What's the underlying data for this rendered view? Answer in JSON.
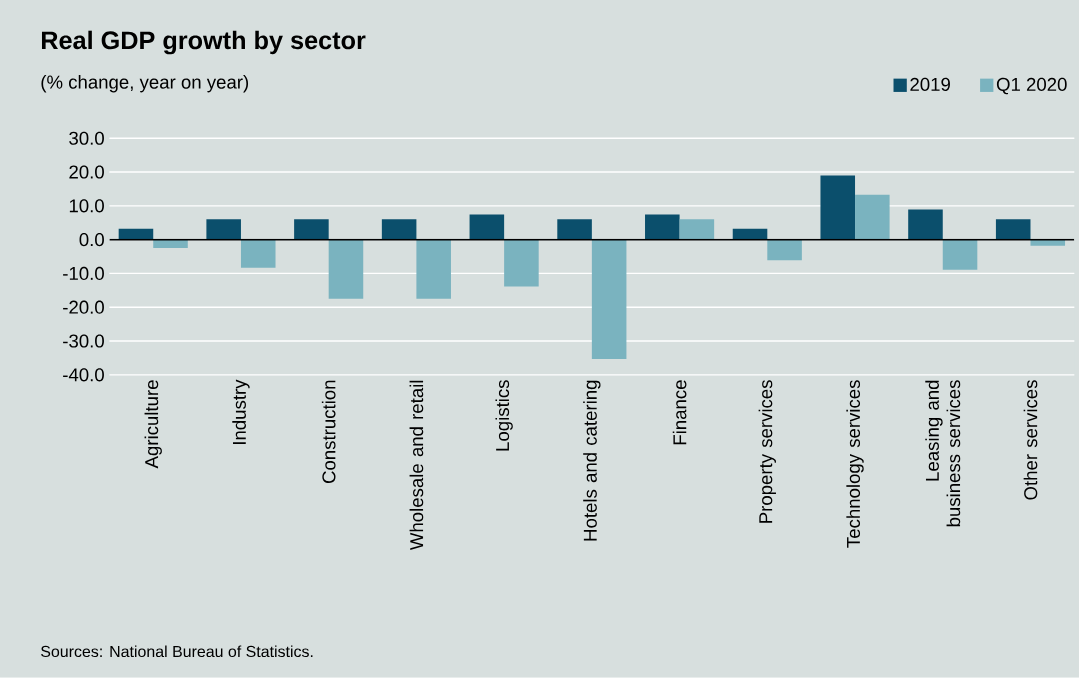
{
  "chart_data": {
    "type": "bar",
    "title": "Real GDP growth by sector",
    "subtitle": "(% change, year on year)",
    "categories": [
      "Agriculture",
      "Industry",
      "Construction",
      "Wholesale and retail",
      "Logistics",
      "Hotels and catering",
      "Finance",
      "Property services",
      "Technology services",
      "Leasing and business services",
      "Other services"
    ],
    "series": [
      {
        "name": "2019",
        "color": "#0b4f6c",
        "values": [
          3.2,
          6.0,
          6.0,
          6.0,
          7.4,
          6.0,
          7.4,
          3.2,
          19.0,
          8.9,
          6.0
        ]
      },
      {
        "name": "Q1 2020",
        "color": "#7ab3bf",
        "values": [
          -2.5,
          -8.3,
          -17.5,
          -17.5,
          -13.9,
          -35.3,
          6.0,
          -6.1,
          13.3,
          -8.9,
          -1.8
        ]
      }
    ],
    "ylim": [
      -40,
      30
    ],
    "yticks": [
      {
        "value": -40,
        "label": "-40.0"
      },
      {
        "value": -30,
        "label": "-30.0"
      },
      {
        "value": -20,
        "label": "-20.0"
      },
      {
        "value": -10,
        "label": "-10.0"
      },
      {
        "value": 0,
        "label": "0.0"
      },
      {
        "value": 10,
        "label": "10.0"
      },
      {
        "value": 20,
        "label": "20.0"
      },
      {
        "value": 30,
        "label": "30.0"
      }
    ],
    "grid": "y",
    "legend": "top right",
    "annotations": [
      "Sources: National Bureau of Statistics."
    ]
  }
}
